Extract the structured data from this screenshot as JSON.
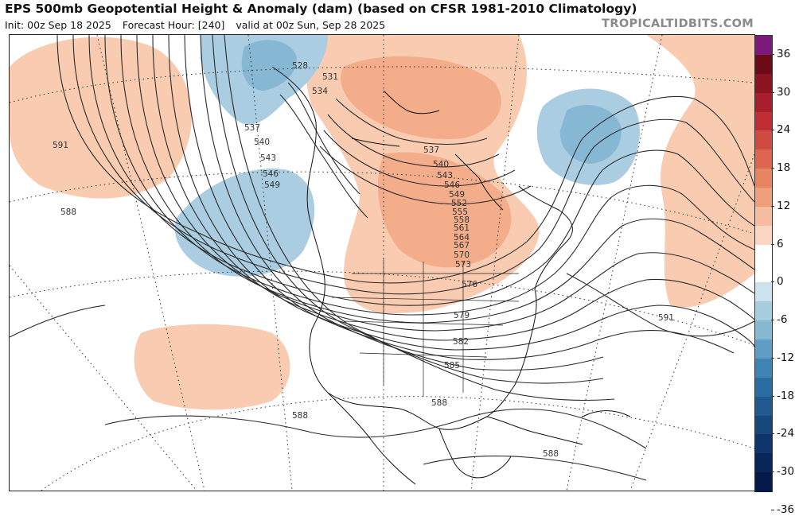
{
  "header": {
    "title": "EPS 500mb Geopotential Height & Anomaly (dam) (based on CFSR 1981-2010 Climatology)",
    "init": "Init: 00z Sep 18 2025",
    "forecast_hour": "Forecast Hour: [240]",
    "valid": "valid at 00z Sun, Sep 28 2025",
    "brand": "TROPICALTIDBITS.COM"
  },
  "colorbar": {
    "ticks": [
      "36",
      "30",
      "24",
      "18",
      "12",
      "6",
      "0",
      "-6",
      "-12",
      "-18",
      "-24",
      "-30",
      "-36"
    ],
    "colors": [
      "#7b1a7b",
      "#6d0a1a",
      "#8c1422",
      "#a81e2c",
      "#c02e34",
      "#cf4a42",
      "#dc6650",
      "#e6855f",
      "#ef9f7a",
      "#f6bca0",
      "#fbd6c2",
      "#ffffff",
      "#ffffff",
      "#cce3ee",
      "#a9cde0",
      "#86b7d3",
      "#5f9dc4",
      "#3f84b4",
      "#2a6da3",
      "#1e5990",
      "#16477d",
      "#0f356b",
      "#0a255a",
      "#061a49"
    ]
  },
  "contour_labels": [
    "528",
    "531",
    "534",
    "537",
    "540",
    "543",
    "546",
    "549",
    "552",
    "555",
    "558",
    "561",
    "564",
    "567",
    "570",
    "573",
    "576",
    "579",
    "582",
    "585",
    "588",
    "591"
  ],
  "map_labels": {
    "l537": "537",
    "l540": "540",
    "l543": "543",
    "l546": "546",
    "l549": "549",
    "l528": "528",
    "l531": "531",
    "l534": "534",
    "l591w": "591",
    "l588w": "588",
    "l588s": "588",
    "l591e": "591",
    "c537": "537",
    "c540": "540",
    "c543": "543",
    "c546": "546",
    "c549": "549",
    "c552": "552",
    "c555": "555",
    "c558": "558",
    "c561": "561",
    "c564": "564",
    "c567": "567",
    "c570": "570",
    "c573": "573",
    "c576": "576",
    "c579": "579",
    "c582": "582",
    "c585": "585",
    "c588g": "588",
    "c588c": "588"
  }
}
